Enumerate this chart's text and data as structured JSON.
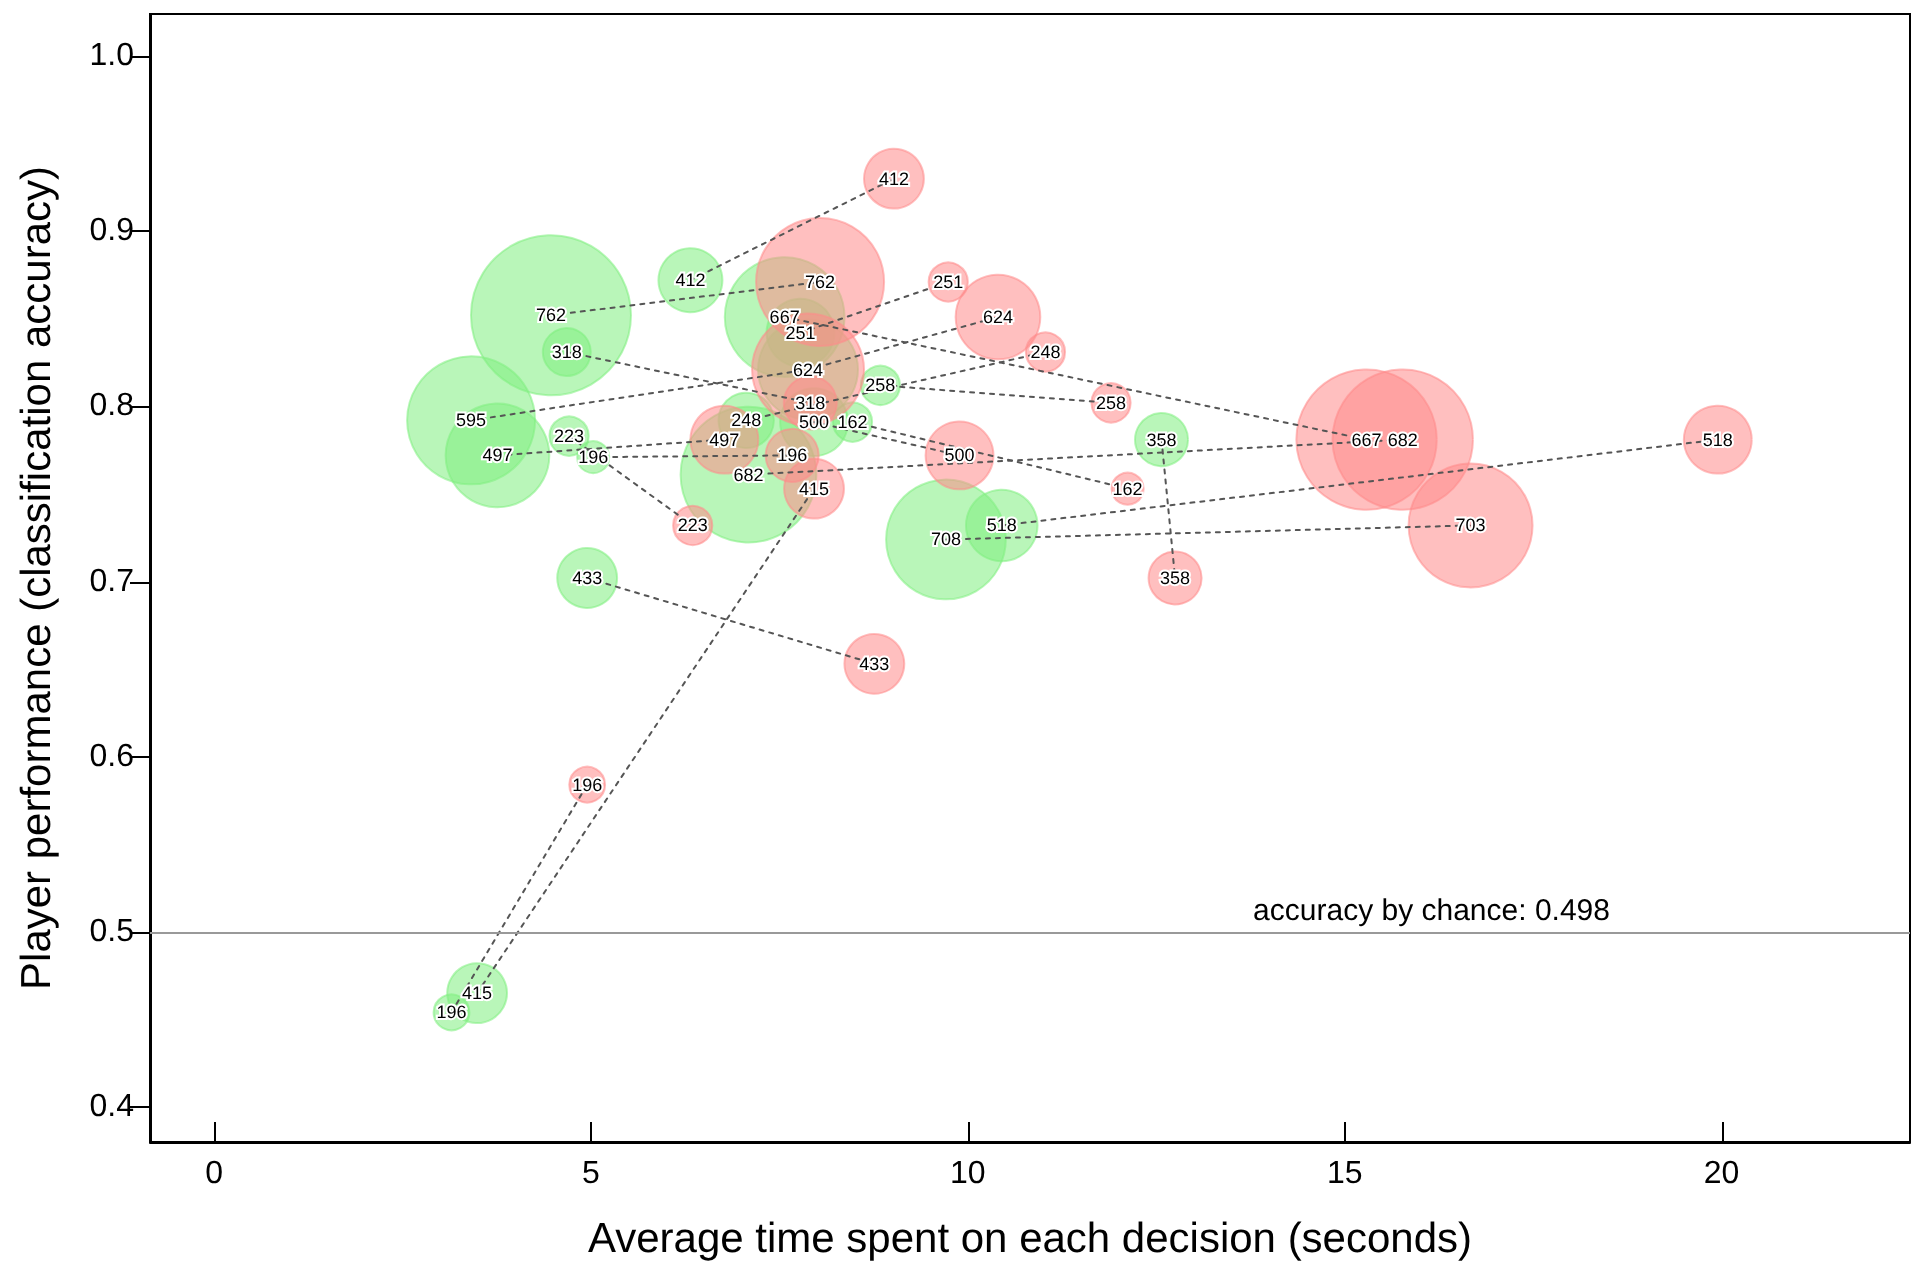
{
  "chart_data": {
    "type": "bubble",
    "xlabel": "Average time spent on each decision (seconds)",
    "ylabel": "Player performance (classification accuracy)",
    "xlim": [
      -0.85,
      22.5
    ],
    "xticks": [
      0,
      5,
      10,
      15,
      20
    ],
    "ylim": [
      0.38,
      1.024
    ],
    "yticks": [
      0.4,
      0.5,
      0.6,
      0.7,
      0.8,
      0.9,
      {
        "value": 1,
        "label": "1.0"
      }
    ],
    "grid": false,
    "ref_lines": [
      {
        "axis": "y",
        "value": 0.498,
        "label": "accuracy by chance: 0.498",
        "color": "#999999"
      }
    ],
    "series": [
      {
        "type": "line",
        "color": "#555555",
        "line_style": "dotted",
        "marker": "none",
        "x": [
          4.47,
          8.04
        ],
        "values": [
          0.852,
          0.871
        ]
      },
      {
        "type": "line",
        "color": "#555555",
        "line_style": "dotted",
        "marker": "none",
        "x": [
          6.32,
          9.02
        ],
        "values": [
          0.872,
          0.93
        ]
      },
      {
        "type": "line",
        "color": "#555555",
        "line_style": "dotted",
        "marker": "none",
        "x": [
          4.68,
          7.91
        ],
        "values": [
          0.831,
          0.802
        ]
      },
      {
        "type": "line",
        "color": "#555555",
        "line_style": "dotted",
        "marker": "none",
        "x": [
          3.41,
          7.88,
          10.4
        ],
        "values": [
          0.792,
          0.821,
          0.851
        ]
      },
      {
        "type": "line",
        "color": "#555555",
        "line_style": "dotted",
        "marker": "none",
        "x": [
          3.76,
          6.77
        ],
        "values": [
          0.772,
          0.781
        ]
      },
      {
        "type": "line",
        "color": "#555555",
        "line_style": "dotted",
        "marker": "none",
        "x": [
          4.71,
          6.35
        ],
        "values": [
          0.783,
          0.732
        ]
      },
      {
        "type": "line",
        "color": "#555555",
        "line_style": "dotted",
        "marker": "none",
        "x": [
          5.03,
          7.67
        ],
        "values": [
          0.771,
          0.772
        ]
      },
      {
        "type": "line",
        "color": "#555555",
        "line_style": "dotted",
        "marker": "none",
        "x": [
          7.57,
          15.29
        ],
        "values": [
          0.851,
          0.781
        ]
      },
      {
        "type": "line",
        "color": "#555555",
        "line_style": "dotted",
        "marker": "none",
        "x": [
          7.78,
          9.74
        ],
        "values": [
          0.842,
          0.871
        ]
      },
      {
        "type": "line",
        "color": "#555555",
        "line_style": "dotted",
        "marker": "none",
        "x": [
          7.06,
          11.03
        ],
        "values": [
          0.792,
          0.831
        ]
      },
      {
        "type": "line",
        "color": "#555555",
        "line_style": "dotted",
        "marker": "none",
        "x": [
          7.96,
          9.89
        ],
        "values": [
          0.791,
          0.772
        ]
      },
      {
        "type": "line",
        "color": "#555555",
        "line_style": "dotted",
        "marker": "none",
        "x": [
          8.47,
          12.12
        ],
        "values": [
          0.791,
          0.753
        ]
      },
      {
        "type": "line",
        "color": "#555555",
        "line_style": "dotted",
        "marker": "none",
        "x": [
          8.84,
          11.9
        ],
        "values": [
          0.812,
          0.802
        ]
      },
      {
        "type": "line",
        "color": "#555555",
        "line_style": "dotted",
        "marker": "none",
        "x": [
          7.09,
          15.77
        ],
        "values": [
          0.761,
          0.781
        ]
      },
      {
        "type": "line",
        "color": "#555555",
        "line_style": "dotted",
        "marker": "none",
        "x": [
          12.57,
          12.75
        ],
        "values": [
          0.781,
          0.702
        ]
      },
      {
        "type": "line",
        "color": "#555555",
        "line_style": "dotted",
        "marker": "none",
        "x": [
          10.45,
          19.95
        ],
        "values": [
          0.732,
          0.781
        ]
      },
      {
        "type": "line",
        "color": "#555555",
        "line_style": "dotted",
        "marker": "none",
        "x": [
          9.71,
          16.67
        ],
        "values": [
          0.724,
          0.732
        ]
      },
      {
        "type": "line",
        "color": "#555555",
        "line_style": "dotted",
        "marker": "none",
        "x": [
          4.95,
          8.76
        ],
        "values": [
          0.702,
          0.653
        ]
      },
      {
        "type": "line",
        "color": "#555555",
        "line_style": "dotted",
        "marker": "none",
        "x": [
          3.49,
          7.96
        ],
        "values": [
          0.465,
          0.753
        ]
      },
      {
        "type": "line",
        "color": "#555555",
        "line_style": "dotted",
        "marker": "none",
        "x": [
          3.15,
          4.95
        ],
        "values": [
          0.454,
          0.584
        ]
      },
      {
        "color": "#7fee7f",
        "x": [
          4.47,
          6.32,
          4.68,
          3.41,
          3.76,
          4.71,
          5.03,
          7.57,
          7.78,
          7.88,
          7.06,
          7.96,
          8.47,
          8.84,
          7.09,
          12.57,
          10.45,
          9.71,
          4.95,
          3.49,
          3.15
        ],
        "values": [
          0.852,
          0.872,
          0.831,
          0.792,
          0.772,
          0.783,
          0.771,
          0.851,
          0.842,
          0.821,
          0.792,
          0.791,
          0.791,
          0.812,
          0.761,
          0.781,
          0.732,
          0.724,
          0.702,
          0.465,
          0.454
        ],
        "sizes": [
          1,
          0.16,
          0.09,
          0.64,
          0.42,
          0.06,
          0.04,
          0.56,
          0.18,
          0.39,
          0.12,
          0.18,
          0.06,
          0.06,
          0.72,
          0.11,
          0.2,
          0.56,
          0.14,
          0.14,
          0.05
        ]
      },
      {
        "color": "#ff8a8a",
        "x": [
          8.04,
          9.02,
          7.91,
          7.88,
          6.77,
          6.35,
          7.67,
          15.29,
          9.74,
          10.4,
          11.03,
          9.89,
          12.12,
          11.9,
          15.77,
          12.75,
          19.95,
          16.67,
          8.76,
          7.96,
          4.95
        ],
        "values": [
          0.871,
          0.93,
          0.802,
          0.821,
          0.781,
          0.732,
          0.772,
          0.781,
          0.871,
          0.851,
          0.831,
          0.772,
          0.753,
          0.802,
          0.781,
          0.702,
          0.781,
          0.732,
          0.653,
          0.753,
          0.584
        ],
        "sizes": [
          0.64,
          0.14,
          0.11,
          0.49,
          0.18,
          0.06,
          0.11,
          0.77,
          0.06,
          0.28,
          0.06,
          0.18,
          0.04,
          0.06,
          0.77,
          0.11,
          0.18,
          0.6,
          0.14,
          0.14,
          0.05
        ]
      }
    ],
    "annotations": [
      {
        "text": "762",
        "x": 4.47,
        "y": 0.852
      },
      {
        "text": "412",
        "x": 6.32,
        "y": 0.872
      },
      {
        "text": "318",
        "x": 4.68,
        "y": 0.831
      },
      {
        "text": "595",
        "x": 3.41,
        "y": 0.792
      },
      {
        "text": "497",
        "x": 3.76,
        "y": 0.772
      },
      {
        "text": "223",
        "x": 4.71,
        "y": 0.783
      },
      {
        "text": "196",
        "x": 5.03,
        "y": 0.771
      },
      {
        "text": "667",
        "x": 7.57,
        "y": 0.851
      },
      {
        "text": "251",
        "x": 7.78,
        "y": 0.842
      },
      {
        "text": "624",
        "x": 7.88,
        "y": 0.821
      },
      {
        "text": "248",
        "x": 7.06,
        "y": 0.792
      },
      {
        "text": "500",
        "x": 7.96,
        "y": 0.791
      },
      {
        "text": "162",
        "x": 8.47,
        "y": 0.791
      },
      {
        "text": "258",
        "x": 8.84,
        "y": 0.812
      },
      {
        "text": "682",
        "x": 7.09,
        "y": 0.761
      },
      {
        "text": "358",
        "x": 12.57,
        "y": 0.781
      },
      {
        "text": "518",
        "x": 10.45,
        "y": 0.732
      },
      {
        "text": "708",
        "x": 9.71,
        "y": 0.724
      },
      {
        "text": "433",
        "x": 4.95,
        "y": 0.702
      },
      {
        "text": "415",
        "x": 3.49,
        "y": 0.465
      },
      {
        "text": "196",
        "x": 3.15,
        "y": 0.454
      },
      {
        "text": "762",
        "x": 8.04,
        "y": 0.871
      },
      {
        "text": "412",
        "x": 9.02,
        "y": 0.93
      },
      {
        "text": "318",
        "x": 7.91,
        "y": 0.802
      },
      {
        "text": "497",
        "x": 6.77,
        "y": 0.781
      },
      {
        "text": "223",
        "x": 6.35,
        "y": 0.732
      },
      {
        "text": "196",
        "x": 7.67,
        "y": 0.772
      },
      {
        "text": "667",
        "x": 15.29,
        "y": 0.781
      },
      {
        "text": "251",
        "x": 9.74,
        "y": 0.871
      },
      {
        "text": "624",
        "x": 10.4,
        "y": 0.851
      },
      {
        "text": "248",
        "x": 11.03,
        "y": 0.831
      },
      {
        "text": "500",
        "x": 9.89,
        "y": 0.772
      },
      {
        "text": "162",
        "x": 12.12,
        "y": 0.753
      },
      {
        "text": "258",
        "x": 11.9,
        "y": 0.802
      },
      {
        "text": "682",
        "x": 15.77,
        "y": 0.781
      },
      {
        "text": "358",
        "x": 12.75,
        "y": 0.702
      },
      {
        "text": "518",
        "x": 19.95,
        "y": 0.781
      },
      {
        "text": "703",
        "x": 16.67,
        "y": 0.732
      },
      {
        "text": "433",
        "x": 8.76,
        "y": 0.653
      },
      {
        "text": "415",
        "x": 7.96,
        "y": 0.753
      },
      {
        "text": "196",
        "x": 4.95,
        "y": 0.584
      }
    ]
  }
}
